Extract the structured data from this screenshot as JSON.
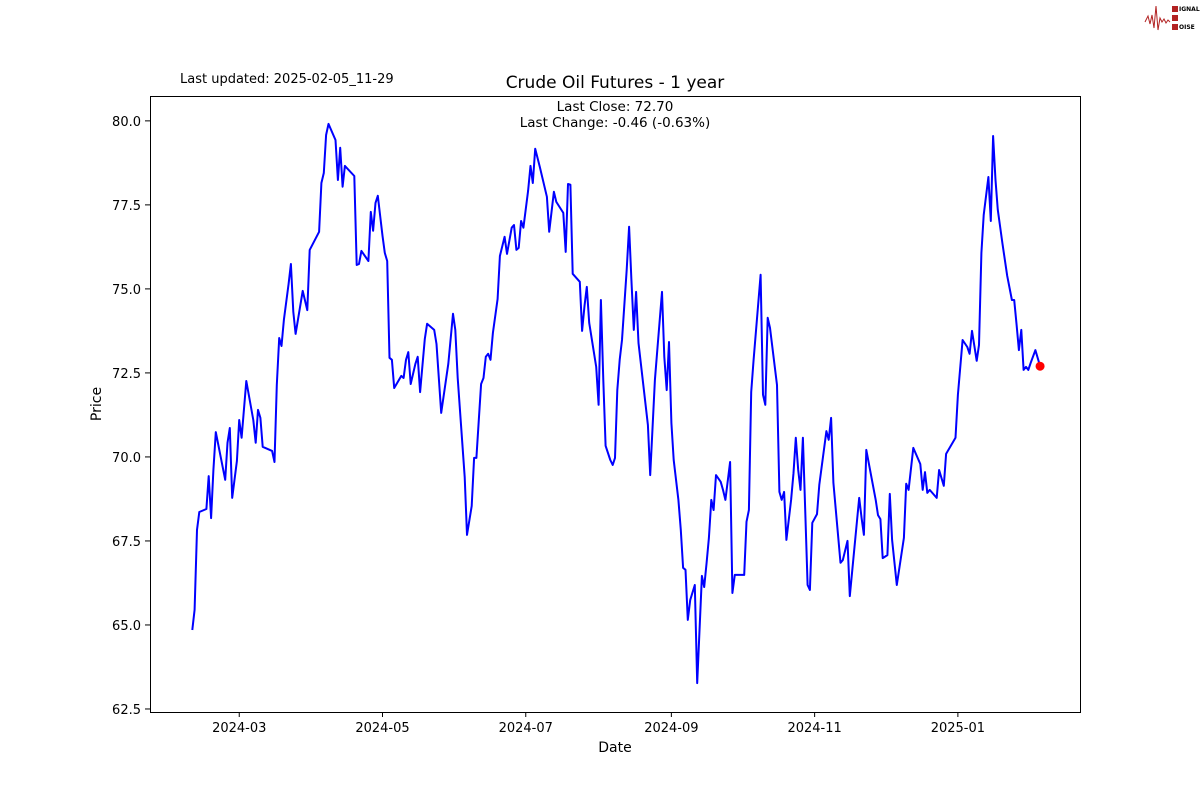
{
  "header": {
    "last_updated": "Last updated: 2025-02-05_11-29",
    "logo_text": "SIGNAL 2 NOISE"
  },
  "chart_data": {
    "type": "line",
    "title": "Crude Oil Futures - 1 year",
    "annotations": [
      "Last Close: 72.70",
      "Last Change: -0.46 (-0.63%)"
    ],
    "xlabel": "Date",
    "ylabel": "Price",
    "xlim": [
      "2024-01-23",
      "2025-02-22"
    ],
    "ylim": [
      62.41,
      80.74
    ],
    "x_ticks": [
      "2024-03",
      "2024-05",
      "2024-07",
      "2024-09",
      "2024-11",
      "2025-01"
    ],
    "y_ticks": [
      "62.5",
      "65.0",
      "67.5",
      "70.0",
      "72.5",
      "75.0",
      "77.5",
      "80.0"
    ],
    "grid": false,
    "line_color": "#0000ff",
    "marker_color": "#ff0000",
    "last_point": [
      "2025-02-05",
      72.7
    ],
    "points": [
      [
        "2024-02-10",
        64.85
      ],
      [
        "2024-02-11",
        65.45
      ],
      [
        "2024-02-12",
        67.83
      ],
      [
        "2024-02-13",
        68.36
      ],
      [
        "2024-02-16",
        68.45
      ],
      [
        "2024-02-17",
        69.43
      ],
      [
        "2024-02-18",
        68.18
      ],
      [
        "2024-02-19",
        69.61
      ],
      [
        "2024-02-20",
        70.74
      ],
      [
        "2024-02-24",
        69.32
      ],
      [
        "2024-02-25",
        70.42
      ],
      [
        "2024-02-26",
        70.86
      ],
      [
        "2024-02-27",
        68.78
      ],
      [
        "2024-02-29",
        69.88
      ],
      [
        "2024-03-01",
        71.1
      ],
      [
        "2024-03-02",
        70.57
      ],
      [
        "2024-03-04",
        72.26
      ],
      [
        "2024-03-07",
        71.1
      ],
      [
        "2024-03-08",
        70.42
      ],
      [
        "2024-03-09",
        71.4
      ],
      [
        "2024-03-10",
        71.16
      ],
      [
        "2024-03-11",
        70.3
      ],
      [
        "2024-03-15",
        70.18
      ],
      [
        "2024-03-16",
        69.85
      ],
      [
        "2024-03-17",
        72.14
      ],
      [
        "2024-03-18",
        73.54
      ],
      [
        "2024-03-19",
        73.3
      ],
      [
        "2024-03-20",
        74.08
      ],
      [
        "2024-03-22",
        75.15
      ],
      [
        "2024-03-23",
        75.74
      ],
      [
        "2024-03-24",
        74.32
      ],
      [
        "2024-03-25",
        73.66
      ],
      [
        "2024-03-28",
        74.94
      ],
      [
        "2024-03-30",
        74.37
      ],
      [
        "2024-03-31",
        76.16
      ],
      [
        "2024-04-04",
        76.7
      ],
      [
        "2024-04-05",
        78.15
      ],
      [
        "2024-04-06",
        78.45
      ],
      [
        "2024-04-07",
        79.58
      ],
      [
        "2024-04-08",
        79.91
      ],
      [
        "2024-04-11",
        79.43
      ],
      [
        "2024-04-12",
        78.24
      ],
      [
        "2024-04-13",
        79.2
      ],
      [
        "2024-04-14",
        78.04
      ],
      [
        "2024-04-15",
        78.66
      ],
      [
        "2024-04-19",
        78.36
      ],
      [
        "2024-04-20",
        75.71
      ],
      [
        "2024-04-21",
        75.74
      ],
      [
        "2024-04-22",
        76.13
      ],
      [
        "2024-04-25",
        75.83
      ],
      [
        "2024-04-26",
        77.29
      ],
      [
        "2024-04-27",
        76.73
      ],
      [
        "2024-04-28",
        77.56
      ],
      [
        "2024-04-29",
        77.77
      ],
      [
        "2024-05-01",
        76.58
      ],
      [
        "2024-05-02",
        76.07
      ],
      [
        "2024-05-03",
        75.83
      ],
      [
        "2024-05-04",
        72.95
      ],
      [
        "2024-05-05",
        72.89
      ],
      [
        "2024-05-06",
        72.05
      ],
      [
        "2024-05-09",
        72.41
      ],
      [
        "2024-05-10",
        72.35
      ],
      [
        "2024-05-11",
        72.89
      ],
      [
        "2024-05-12",
        73.12
      ],
      [
        "2024-05-13",
        72.17
      ],
      [
        "2024-05-15",
        72.77
      ],
      [
        "2024-05-16",
        72.98
      ],
      [
        "2024-05-17",
        71.93
      ],
      [
        "2024-05-19",
        73.51
      ],
      [
        "2024-05-20",
        73.96
      ],
      [
        "2024-05-23",
        73.78
      ],
      [
        "2024-05-24",
        73.36
      ],
      [
        "2024-05-26",
        71.31
      ],
      [
        "2024-05-29",
        72.77
      ],
      [
        "2024-05-31",
        74.26
      ],
      [
        "2024-06-01",
        73.78
      ],
      [
        "2024-06-02",
        72.35
      ],
      [
        "2024-06-05",
        69.4
      ],
      [
        "2024-06-06",
        67.68
      ],
      [
        "2024-06-08",
        68.54
      ],
      [
        "2024-06-09",
        69.97
      ],
      [
        "2024-06-10",
        69.97
      ],
      [
        "2024-06-11",
        71.1
      ],
      [
        "2024-06-12",
        72.17
      ],
      [
        "2024-06-13",
        72.35
      ],
      [
        "2024-06-14",
        72.98
      ],
      [
        "2024-06-15",
        73.07
      ],
      [
        "2024-06-16",
        72.89
      ],
      [
        "2024-06-17",
        73.69
      ],
      [
        "2024-06-19",
        74.7
      ],
      [
        "2024-06-20",
        75.98
      ],
      [
        "2024-06-22",
        76.55
      ],
      [
        "2024-06-23",
        76.04
      ],
      [
        "2024-06-25",
        76.82
      ],
      [
        "2024-06-26",
        76.9
      ],
      [
        "2024-06-27",
        76.16
      ],
      [
        "2024-06-28",
        76.22
      ],
      [
        "2024-06-29",
        77.02
      ],
      [
        "2024-06-30",
        76.82
      ],
      [
        "2024-07-02",
        77.92
      ],
      [
        "2024-07-03",
        78.66
      ],
      [
        "2024-07-04",
        78.15
      ],
      [
        "2024-07-05",
        79.17
      ],
      [
        "2024-07-07",
        78.63
      ],
      [
        "2024-07-10",
        77.74
      ],
      [
        "2024-07-11",
        76.7
      ],
      [
        "2024-07-13",
        77.89
      ],
      [
        "2024-07-14",
        77.59
      ],
      [
        "2024-07-17",
        77.26
      ],
      [
        "2024-07-18",
        76.1
      ],
      [
        "2024-07-19",
        78.12
      ],
      [
        "2024-07-20",
        78.1
      ],
      [
        "2024-07-21",
        75.45
      ],
      [
        "2024-07-24",
        75.21
      ],
      [
        "2024-07-25",
        73.75
      ],
      [
        "2024-07-26",
        74.49
      ],
      [
        "2024-07-27",
        75.06
      ],
      [
        "2024-07-28",
        73.99
      ],
      [
        "2024-07-31",
        72.68
      ],
      [
        "2024-08-01",
        71.55
      ],
      [
        "2024-08-02",
        74.67
      ],
      [
        "2024-08-03",
        72.29
      ],
      [
        "2024-08-04",
        70.33
      ],
      [
        "2024-08-06",
        69.91
      ],
      [
        "2024-08-07",
        69.76
      ],
      [
        "2024-08-08",
        69.97
      ],
      [
        "2024-08-09",
        71.99
      ],
      [
        "2024-08-10",
        72.89
      ],
      [
        "2024-08-11",
        73.48
      ],
      [
        "2024-08-13",
        75.57
      ],
      [
        "2024-08-14",
        76.85
      ],
      [
        "2024-08-15",
        75.27
      ],
      [
        "2024-08-16",
        73.78
      ],
      [
        "2024-08-17",
        74.91
      ],
      [
        "2024-08-18",
        73.39
      ],
      [
        "2024-08-22",
        70.95
      ],
      [
        "2024-08-23",
        69.46
      ],
      [
        "2024-08-25",
        72.29
      ],
      [
        "2024-08-26",
        73.18
      ],
      [
        "2024-08-28",
        74.91
      ],
      [
        "2024-08-29",
        72.98
      ],
      [
        "2024-08-30",
        71.99
      ],
      [
        "2024-08-31",
        73.42
      ],
      [
        "2024-09-01",
        71.01
      ],
      [
        "2024-09-02",
        69.91
      ],
      [
        "2024-09-04",
        68.72
      ],
      [
        "2024-09-05",
        67.83
      ],
      [
        "2024-09-06",
        66.7
      ],
      [
        "2024-09-07",
        66.64
      ],
      [
        "2024-09-08",
        65.15
      ],
      [
        "2024-09-09",
        65.74
      ],
      [
        "2024-09-11",
        66.19
      ],
      [
        "2024-09-12",
        63.27
      ],
      [
        "2024-09-14",
        66.46
      ],
      [
        "2024-09-15",
        66.13
      ],
      [
        "2024-09-16",
        66.85
      ],
      [
        "2024-09-17",
        67.59
      ],
      [
        "2024-09-18",
        68.72
      ],
      [
        "2024-09-19",
        68.42
      ],
      [
        "2024-09-20",
        69.46
      ],
      [
        "2024-09-22",
        69.26
      ],
      [
        "2024-09-23",
        69.02
      ],
      [
        "2024-09-24",
        68.72
      ],
      [
        "2024-09-26",
        69.85
      ],
      [
        "2024-09-27",
        65.95
      ],
      [
        "2024-09-28",
        66.49
      ],
      [
        "2024-10-02",
        66.49
      ],
      [
        "2024-10-03",
        68.07
      ],
      [
        "2024-10-04",
        68.42
      ],
      [
        "2024-10-05",
        71.93
      ],
      [
        "2024-10-06",
        72.89
      ],
      [
        "2024-10-09",
        75.42
      ],
      [
        "2024-10-10",
        71.85
      ],
      [
        "2024-10-11",
        71.55
      ],
      [
        "2024-10-12",
        74.14
      ],
      [
        "2024-10-13",
        73.84
      ],
      [
        "2024-10-16",
        72.14
      ],
      [
        "2024-10-17",
        68.96
      ],
      [
        "2024-10-18",
        68.72
      ],
      [
        "2024-10-19",
        68.96
      ],
      [
        "2024-10-20",
        67.53
      ],
      [
        "2024-10-22",
        68.72
      ],
      [
        "2024-10-23",
        69.52
      ],
      [
        "2024-10-24",
        70.57
      ],
      [
        "2024-10-25",
        69.61
      ],
      [
        "2024-10-26",
        69.02
      ],
      [
        "2024-10-27",
        70.57
      ],
      [
        "2024-10-29",
        66.19
      ],
      [
        "2024-10-30",
        66.04
      ],
      [
        "2024-10-31",
        68.04
      ],
      [
        "2024-11-02",
        68.3
      ],
      [
        "2024-11-03",
        69.17
      ],
      [
        "2024-11-06",
        70.77
      ],
      [
        "2024-11-07",
        70.51
      ],
      [
        "2024-11-08",
        71.16
      ],
      [
        "2024-11-09",
        69.23
      ],
      [
        "2024-11-12",
        66.85
      ],
      [
        "2024-11-13",
        66.93
      ],
      [
        "2024-11-15",
        67.5
      ],
      [
        "2024-11-16",
        65.86
      ],
      [
        "2024-11-19",
        68.07
      ],
      [
        "2024-11-20",
        68.78
      ],
      [
        "2024-11-21",
        68.18
      ],
      [
        "2024-11-22",
        67.68
      ],
      [
        "2024-11-23",
        70.21
      ],
      [
        "2024-11-27",
        68.72
      ],
      [
        "2024-11-28",
        68.27
      ],
      [
        "2024-11-29",
        68.15
      ],
      [
        "2024-11-30",
        66.99
      ],
      [
        "2024-12-02",
        67.08
      ],
      [
        "2024-12-03",
        68.9
      ],
      [
        "2024-12-04",
        67.53
      ],
      [
        "2024-12-06",
        66.19
      ],
      [
        "2024-12-09",
        67.59
      ],
      [
        "2024-12-10",
        69.2
      ],
      [
        "2024-12-11",
        69.02
      ],
      [
        "2024-12-13",
        70.27
      ],
      [
        "2024-12-16",
        69.79
      ],
      [
        "2024-12-17",
        69.02
      ],
      [
        "2024-12-18",
        69.55
      ],
      [
        "2024-12-19",
        68.93
      ],
      [
        "2024-12-20",
        69.02
      ],
      [
        "2024-12-23",
        68.78
      ],
      [
        "2024-12-24",
        69.61
      ],
      [
        "2024-12-26",
        69.14
      ],
      [
        "2024-12-27",
        70.09
      ],
      [
        "2024-12-31",
        70.57
      ],
      [
        "2025-01-01",
        71.85
      ],
      [
        "2025-01-03",
        73.48
      ],
      [
        "2025-01-05",
        73.27
      ],
      [
        "2025-01-06",
        73.07
      ],
      [
        "2025-01-07",
        73.75
      ],
      [
        "2025-01-09",
        72.86
      ],
      [
        "2025-01-10",
        73.33
      ],
      [
        "2025-01-11",
        76.07
      ],
      [
        "2025-01-12",
        77.2
      ],
      [
        "2025-01-14",
        78.33
      ],
      [
        "2025-01-15",
        77.02
      ],
      [
        "2025-01-16",
        79.55
      ],
      [
        "2025-01-17",
        78.24
      ],
      [
        "2025-01-18",
        77.35
      ],
      [
        "2025-01-20",
        76.34
      ],
      [
        "2025-01-22",
        75.39
      ],
      [
        "2025-01-24",
        74.67
      ],
      [
        "2025-01-25",
        74.67
      ],
      [
        "2025-01-26",
        73.93
      ],
      [
        "2025-01-27",
        73.18
      ],
      [
        "2025-01-28",
        73.78
      ],
      [
        "2025-01-29",
        72.59
      ],
      [
        "2025-01-30",
        72.68
      ],
      [
        "2025-01-31",
        72.59
      ],
      [
        "2025-02-01",
        72.8
      ],
      [
        "2025-02-03",
        73.18
      ],
      [
        "2025-02-05",
        72.7
      ]
    ]
  }
}
